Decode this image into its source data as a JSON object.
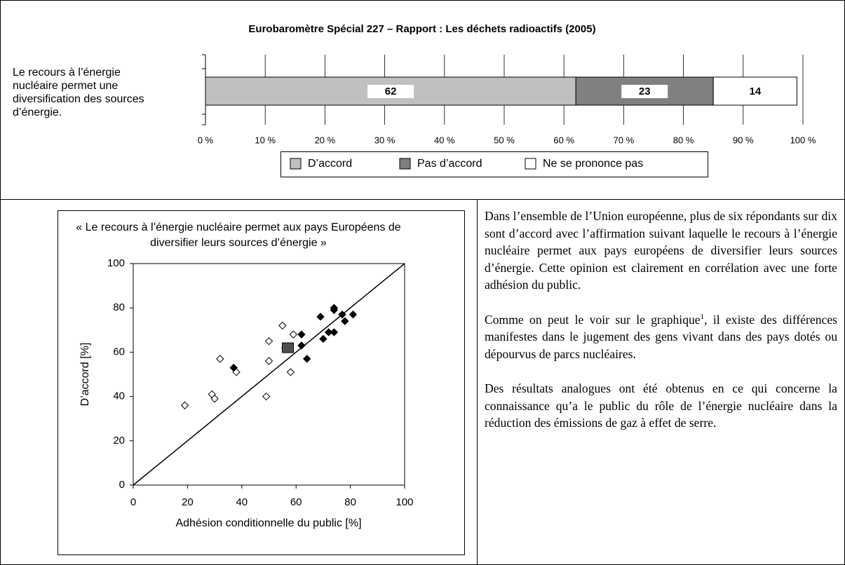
{
  "chart_data": [
    {
      "type": "bar",
      "orientation": "horizontal",
      "stacked": true,
      "title": "Eurobaromètre Spécial 227 – Rapport : Les déchets radioactifs (2005)",
      "categories": [
        "Le recours à l’énergie nucléaire permet une diversification des sources d’énergie."
      ],
      "series": [
        {
          "name": "D’accord",
          "color": "#c0c0c0",
          "values": [
            62
          ]
        },
        {
          "name": "Pas d’accord",
          "color": "#808080",
          "values": [
            23
          ]
        },
        {
          "name": "Ne se prononce pas",
          "color": "#ffffff",
          "values": [
            14
          ]
        }
      ],
      "xlim": [
        0,
        100
      ],
      "xticks": [
        {
          "value": 0,
          "label": "0 %"
        },
        {
          "value": 10,
          "label": "10 %"
        },
        {
          "value": 20,
          "label": "20 %"
        },
        {
          "value": 30,
          "label": "30 %"
        },
        {
          "value": 40,
          "label": "40 %"
        },
        {
          "value": 50,
          "label": "50 %"
        },
        {
          "value": 60,
          "label": "60 %"
        },
        {
          "value": 70,
          "label": "70 %"
        },
        {
          "value": 80,
          "label": "80 %"
        },
        {
          "value": 90,
          "label": "90 %"
        },
        {
          "value": 100,
          "label": "100 %"
        }
      ],
      "grid": true,
      "legend": "bottom"
    },
    {
      "type": "scatter",
      "title": "« Le recours à l’énergie nucléaire permet aux pays Européens de diversifier leurs sources d’énergie »",
      "x_label": "Adhésion conditionnelle du public [%]",
      "y_label": "D’accord [%]",
      "series": [
        {
          "color": "#ffffff",
          "marker": "diamond",
          "x": [
            19,
            29,
            30,
            32,
            38,
            49,
            50,
            50,
            55,
            56,
            58,
            59
          ],
          "values": [
            36,
            41,
            39,
            57,
            51,
            40,
            65,
            56,
            72,
            62,
            51,
            68
          ]
        },
        {
          "color": "#000000",
          "marker": "diamond",
          "x": [
            37,
            62,
            62,
            64,
            69,
            70,
            72,
            74,
            74,
            74,
            77,
            78,
            81
          ],
          "values": [
            53,
            68,
            63,
            57,
            76,
            66,
            69,
            80,
            79,
            69,
            77,
            74,
            77
          ]
        },
        {
          "color": "#505050",
          "marker": "square",
          "x": [
            57
          ],
          "values": [
            62
          ]
        }
      ],
      "xlim": [
        0,
        100
      ],
      "xticks": [
        0,
        20,
        40,
        60,
        80,
        100
      ],
      "ylim": [
        0,
        100
      ],
      "yticks": [
        0,
        20,
        40,
        60,
        80,
        100
      ],
      "diagonal": true
    }
  ],
  "text": {
    "p1": "Dans l’ensemble de l’Union européenne, plus de six répondants sur dix sont d’accord avec l’affirmation suivant laquelle le recours à l’énergie nucléaire permet aux pays européens de diversifier leurs sources d’énergie. Cette opinion est clairement en corrélation avec une forte adhésion du public.",
    "p2_start": "Comme on peut le voir sur le graphique",
    "p2_note": "1",
    "p2_end": ", il existe des différences manifestes dans le jugement des gens vivant dans des pays dotés ou dépourvus de parcs nucléaires.",
    "p3": "Des résultats analogues ont été obtenus en ce qui concerne la connaissance qu’a le public du rôle de l’énergie nucléaire dans la réduction des émissions de gaz à effet de serre."
  }
}
